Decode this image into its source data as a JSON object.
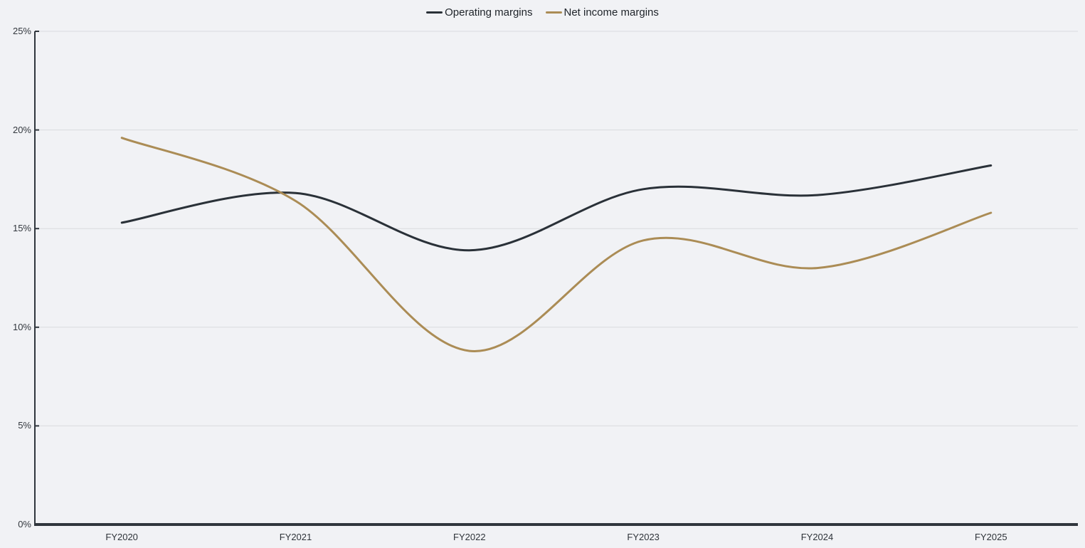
{
  "chart_data": {
    "type": "line",
    "title": "",
    "xlabel": "",
    "ylabel": "",
    "categories": [
      "FY2020",
      "FY2021",
      "FY2022",
      "FY2023",
      "FY2024",
      "FY2025"
    ],
    "series": [
      {
        "name": "Operating margins",
        "color": "#2a3138",
        "values": [
          15.3,
          16.8,
          13.9,
          17.0,
          16.7,
          18.2
        ]
      },
      {
        "name": "Net income margins",
        "color": "#ab8c55",
        "values": [
          19.6,
          16.4,
          8.8,
          14.4,
          13.0,
          15.8
        ]
      }
    ],
    "ylim": [
      0,
      25
    ],
    "y_tick_values": [
      0,
      5,
      10,
      15,
      20,
      25
    ],
    "y_tick_labels": [
      "0%",
      "5%",
      "10%",
      "15%",
      "20%",
      "25%"
    ],
    "grid": true,
    "curve": "smooth",
    "legend_position": "top-center"
  },
  "colors": {
    "background": "#f1f2f5",
    "gridline": "#d9dbde",
    "axis_line": "#30363d",
    "baseline": "#30363d",
    "tick_mark": "#30363d",
    "y_label_text": "#33383e",
    "x_label_text": "#2e3339",
    "legend_text": "#20252b"
  }
}
